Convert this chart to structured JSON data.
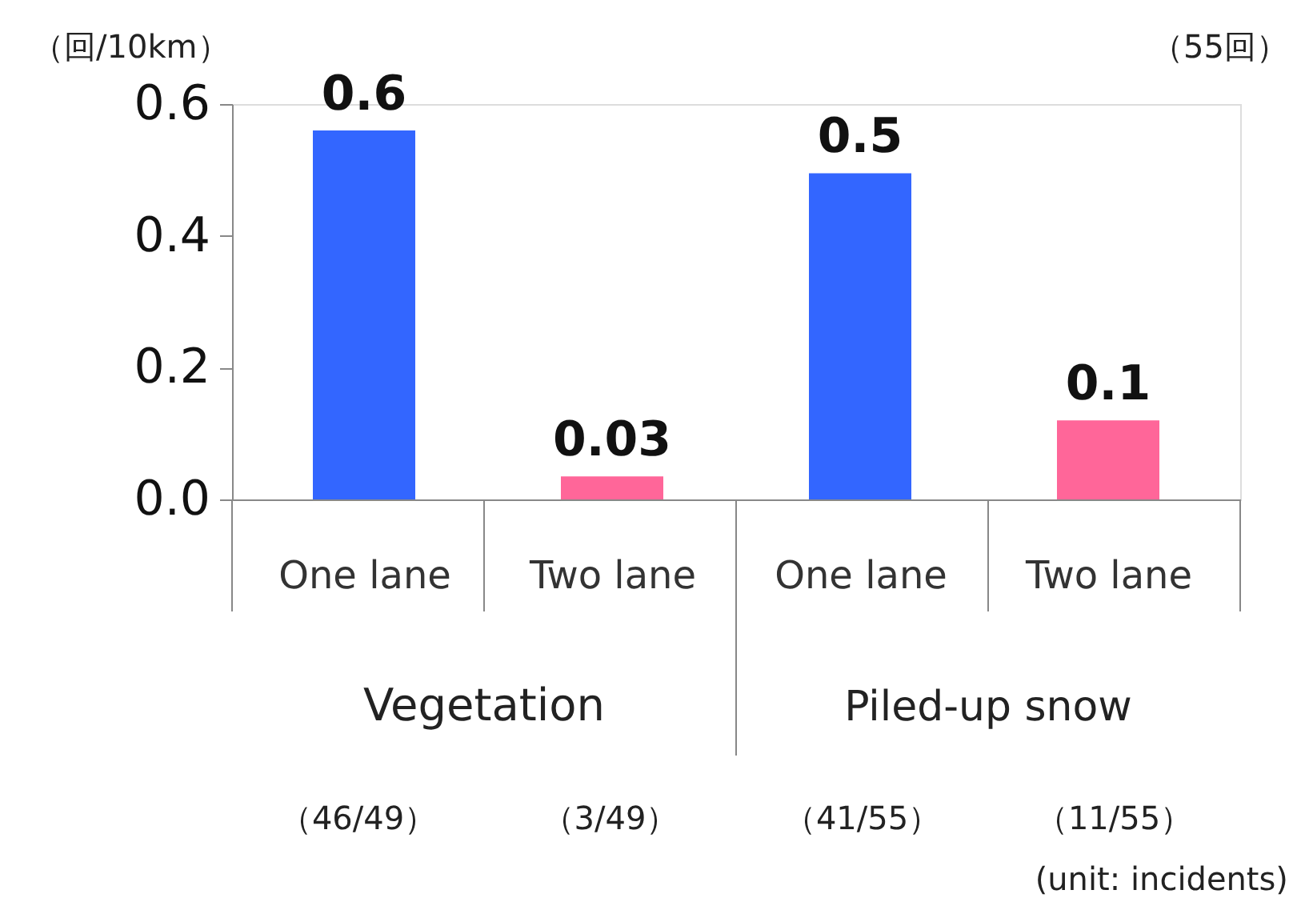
{
  "chart_data": {
    "type": "bar",
    "categories": [
      "One lane",
      "Two lane",
      "One lane",
      "Two lane"
    ],
    "series": [
      {
        "color": "#3366ff",
        "values": [
          0.56,
          null,
          0.495,
          null
        ],
        "value_labels": [
          "0.6",
          null,
          "0.5",
          null
        ]
      },
      {
        "color": "#ff6699",
        "values": [
          null,
          0.035,
          null,
          0.12
        ],
        "value_labels": [
          null,
          "0.03",
          null,
          "0.1"
        ]
      }
    ],
    "ylim": [
      0,
      0.6
    ],
    "yticks": [
      {
        "value": 0,
        "label": "0.0"
      },
      0.2,
      0.4,
      0.6
    ],
    "grid": false,
    "annotations": [
      "（回/10km）",
      "（55回）",
      "Vegetation",
      "Piled-up snow",
      "（46/49）",
      "（3/49）",
      "（41/55）",
      "（11/55）",
      "(unit: incidents)"
    ]
  }
}
